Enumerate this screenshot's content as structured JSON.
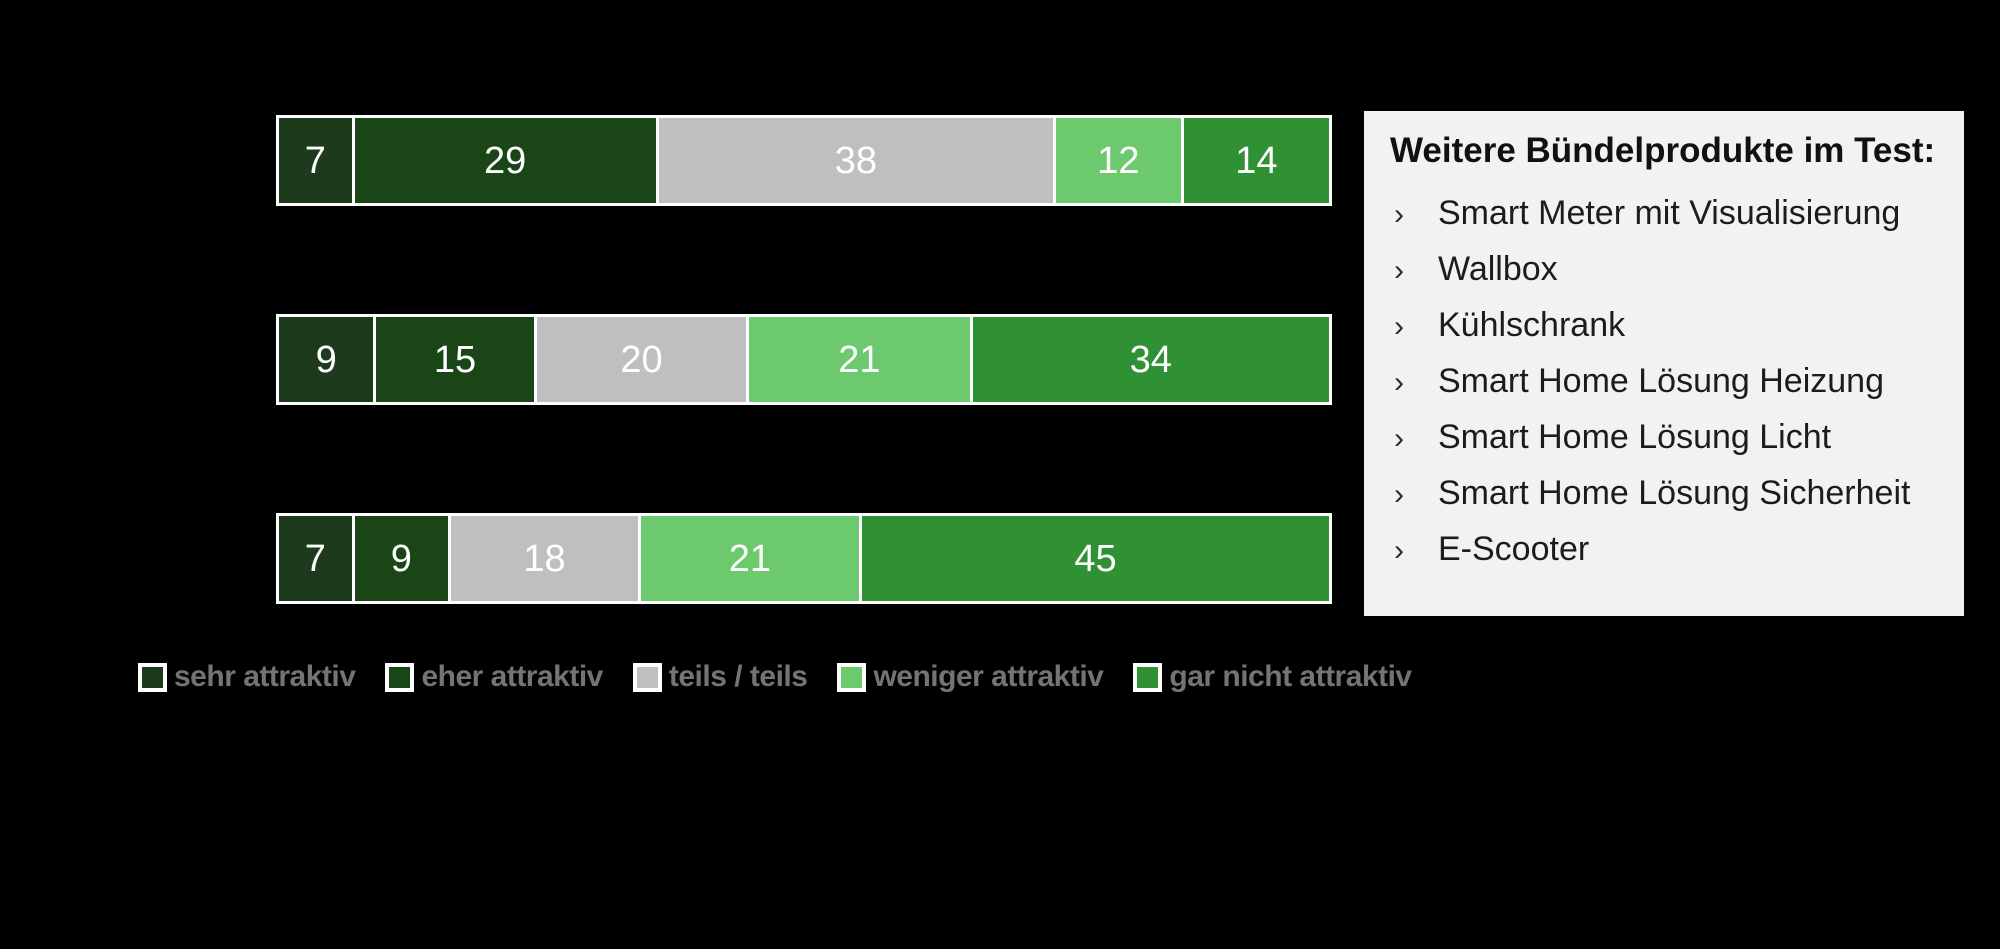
{
  "background_color": "#000000",
  "chart_data": {
    "type": "bar",
    "orientation": "horizontal_stacked",
    "unit": "percent",
    "categories": [
      "",
      "",
      ""
    ],
    "series_labels": [
      "sehr attraktiv",
      "eher attraktiv",
      "teils / teils",
      "weniger attraktiv",
      "gar nicht attraktiv"
    ],
    "series_colors": [
      "#1d3a1d",
      "#1a4617",
      "#bfbfbf",
      "#6cc96e",
      "#2f9133"
    ],
    "rows": [
      {
        "values": [
          7,
          29,
          38,
          12,
          14
        ]
      },
      {
        "values": [
          9,
          15,
          20,
          21,
          34
        ]
      },
      {
        "values": [
          7,
          9,
          18,
          21,
          45
        ]
      }
    ],
    "value_label_color": "#ffffff",
    "bar_border_color": "#ffffff",
    "legend_position": "bottom",
    "grid": false
  },
  "legend": {
    "text_color": "#747474",
    "items": [
      {
        "label": "sehr attraktiv",
        "color": "#1d3a1d"
      },
      {
        "label": "eher attraktiv",
        "color": "#1a4617"
      },
      {
        "label": "teils / teils",
        "color": "#bfbfbf"
      },
      {
        "label": "weniger attraktiv",
        "color": "#6cc96e"
      },
      {
        "label": "gar nicht attraktiv",
        "color": "#2f9133"
      }
    ]
  },
  "side_panel": {
    "title": "Weitere Bündelprodukte im Test:",
    "bullet": "›",
    "background": "#f2f2f2",
    "items": [
      "Smart Meter mit Visualisierung",
      "Wallbox",
      "Kühlschrank",
      "Smart Home Lösung Heizung",
      "Smart Home Lösung Licht",
      "Smart Home Lösung Sicherheit",
      "E-Scooter"
    ]
  }
}
